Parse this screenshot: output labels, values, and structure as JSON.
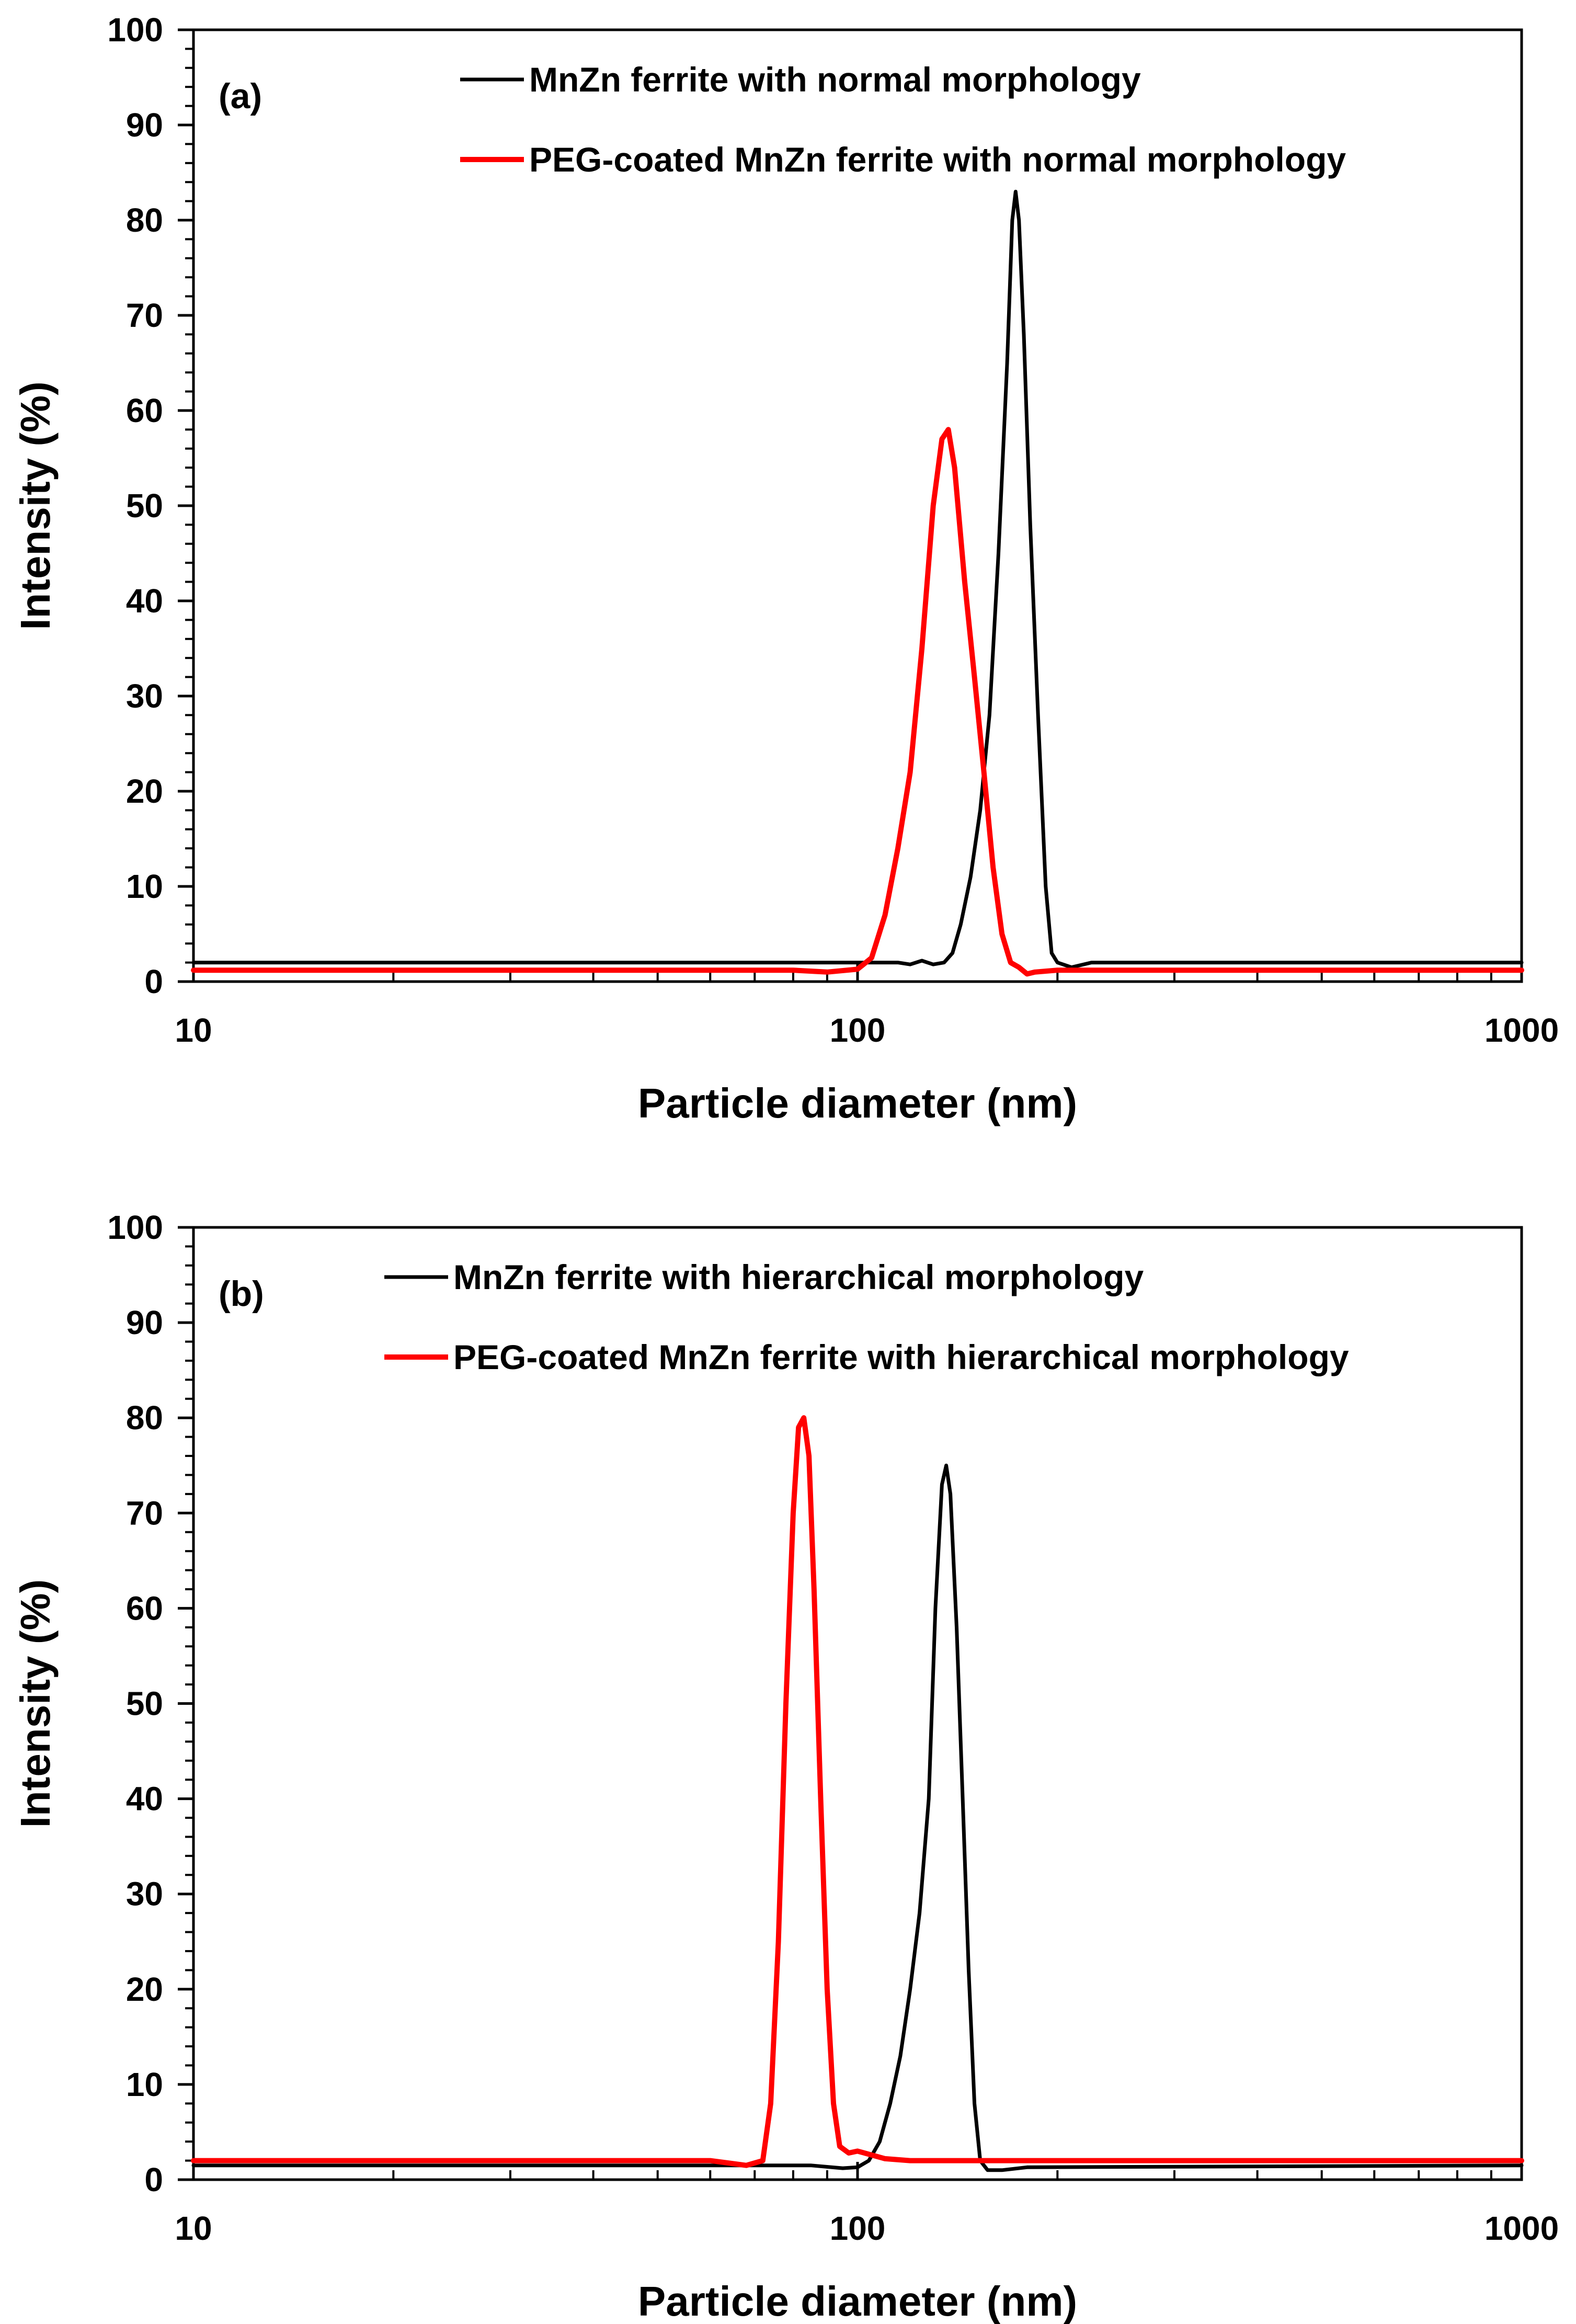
{
  "chart_data": [
    {
      "id": "a",
      "type": "line",
      "panel_label": "(a)",
      "xlabel": "Particle diameter (nm)",
      "ylabel": "Intensity (%)",
      "xscale": "log",
      "xlim": [
        10,
        1000
      ],
      "ylim": [
        0,
        100
      ],
      "xticks": [
        10,
        100,
        1000
      ],
      "xtick_labels": [
        "10",
        "100",
        "1000"
      ],
      "yticks": [
        0,
        10,
        20,
        30,
        40,
        50,
        60,
        70,
        80,
        90,
        100
      ],
      "ytick_labels": [
        "0",
        "10",
        "20",
        "30",
        "40",
        "50",
        "60",
        "70",
        "80",
        "90",
        "100"
      ],
      "legend_position": "top-right",
      "series": [
        {
          "name": "MnZn ferrite with normal morphology",
          "color": "#000000",
          "points": [
            [
              10,
              2
            ],
            [
              60,
              2
            ],
            [
              100,
              2
            ],
            [
              115,
              2
            ],
            [
              120,
              1.8
            ],
            [
              125,
              2.2
            ],
            [
              130,
              1.8
            ],
            [
              135,
              2
            ],
            [
              139,
              3
            ],
            [
              143,
              6
            ],
            [
              148,
              11
            ],
            [
              153,
              18
            ],
            [
              158,
              28
            ],
            [
              163,
              45
            ],
            [
              168,
              65
            ],
            [
              171,
              80
            ],
            [
              173,
              83
            ],
            [
              175,
              80
            ],
            [
              178,
              68
            ],
            [
              182,
              48
            ],
            [
              187,
              28
            ],
            [
              192,
              10
            ],
            [
              196,
              3
            ],
            [
              200,
              2
            ],
            [
              210,
              1.5
            ],
            [
              225,
              2
            ],
            [
              240,
              2
            ],
            [
              1000,
              2
            ]
          ]
        },
        {
          "name": "PEG-coated MnZn ferrite with normal morphology",
          "color": "#ff0000",
          "points": [
            [
              10,
              1.2
            ],
            [
              80,
              1.2
            ],
            [
              90,
              1
            ],
            [
              100,
              1.3
            ],
            [
              105,
              2.5
            ],
            [
              110,
              7
            ],
            [
              115,
              14
            ],
            [
              120,
              22
            ],
            [
              125,
              35
            ],
            [
              130,
              50
            ],
            [
              134,
              57
            ],
            [
              137,
              58
            ],
            [
              140,
              54
            ],
            [
              145,
              42
            ],
            [
              150,
              32
            ],
            [
              155,
              22
            ],
            [
              160,
              12
            ],
            [
              165,
              5
            ],
            [
              170,
              2
            ],
            [
              175,
              1.5
            ],
            [
              180,
              0.8
            ],
            [
              185,
              1
            ],
            [
              200,
              1.2
            ],
            [
              1000,
              1.2
            ]
          ]
        }
      ]
    },
    {
      "id": "b",
      "type": "line",
      "panel_label": "(b)",
      "xlabel": "Particle diameter (nm)",
      "ylabel": "Intensity (%)",
      "xscale": "log",
      "xlim": [
        10,
        1000
      ],
      "ylim": [
        0,
        100
      ],
      "xticks": [
        10,
        100,
        1000
      ],
      "xtick_labels": [
        "10",
        "100",
        "1000"
      ],
      "yticks": [
        0,
        10,
        20,
        30,
        40,
        50,
        60,
        70,
        80,
        90,
        100
      ],
      "ytick_labels": [
        "0",
        "10",
        "20",
        "30",
        "40",
        "50",
        "60",
        "70",
        "80",
        "90",
        "100"
      ],
      "legend_position": "top-right",
      "series": [
        {
          "name": "MnZn ferrite with hierarchical morphology",
          "color": "#000000",
          "points": [
            [
              10,
              1.5
            ],
            [
              70,
              1.5
            ],
            [
              85,
              1.5
            ],
            [
              95,
              1.2
            ],
            [
              100,
              1.3
            ],
            [
              104,
              2
            ],
            [
              108,
              4
            ],
            [
              112,
              8
            ],
            [
              116,
              13
            ],
            [
              120,
              20
            ],
            [
              124,
              28
            ],
            [
              128,
              40
            ],
            [
              131,
              60
            ],
            [
              134,
              73
            ],
            [
              136,
              75
            ],
            [
              138,
              72
            ],
            [
              141,
              58
            ],
            [
              144,
              40
            ],
            [
              147,
              22
            ],
            [
              150,
              8
            ],
            [
              153,
              2
            ],
            [
              157,
              1
            ],
            [
              165,
              1
            ],
            [
              180,
              1.3
            ],
            [
              1000,
              1.5
            ]
          ]
        },
        {
          "name": "PEG-coated MnZn ferrite with hierarchical morphology",
          "color": "#ff0000",
          "points": [
            [
              10,
              2
            ],
            [
              60,
              2
            ],
            [
              68,
              1.5
            ],
            [
              72,
              2
            ],
            [
              74,
              8
            ],
            [
              76,
              25
            ],
            [
              78,
              50
            ],
            [
              80,
              70
            ],
            [
              81.5,
              79
            ],
            [
              83,
              80
            ],
            [
              84.5,
              76
            ],
            [
              86,
              62
            ],
            [
              88,
              40
            ],
            [
              90,
              20
            ],
            [
              92,
              8
            ],
            [
              94,
              3.5
            ],
            [
              97,
              2.8
            ],
            [
              100,
              3
            ],
            [
              110,
              2.2
            ],
            [
              120,
              2
            ],
            [
              1000,
              2
            ]
          ]
        }
      ]
    }
  ]
}
